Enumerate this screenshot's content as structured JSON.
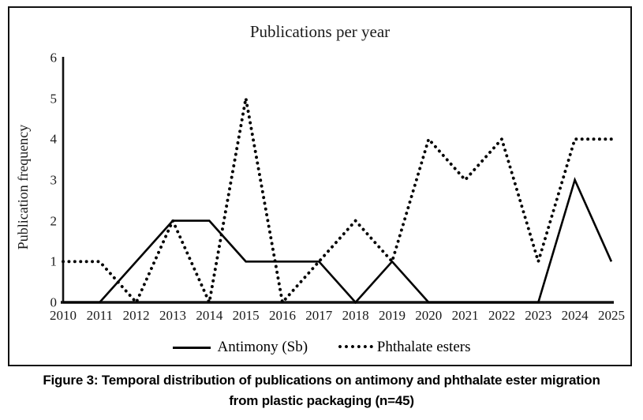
{
  "chart": {
    "title": "Publications per year",
    "y_axis_title": "Publication frequency",
    "dotted_swatch_glyph": "••••••",
    "colors": {
      "line_color": "#000000",
      "axis_color": "#111111",
      "background": "#ffffff"
    }
  },
  "chart_data": {
    "type": "line",
    "title": "Publications per year",
    "xlabel": "",
    "ylabel": "Publication frequency",
    "categories": [
      "2010",
      "2011",
      "2012",
      "2013",
      "2014",
      "2015",
      "2016",
      "2017",
      "2018",
      "2019",
      "2020",
      "2021",
      "2022",
      "2023",
      "2024",
      "2025"
    ],
    "series": [
      {
        "name": "Antimony (Sb)",
        "style": "solid",
        "color": "#000000",
        "values": [
          0,
          0,
          1,
          2,
          2,
          1,
          1,
          1,
          0,
          1,
          0,
          0,
          0,
          0,
          3,
          1
        ]
      },
      {
        "name": "Phthalate esters",
        "style": "dotted",
        "color": "#000000",
        "values": [
          1,
          1,
          0,
          2,
          0,
          5,
          0,
          1,
          2,
          1,
          4,
          3,
          4,
          1,
          4,
          4
        ]
      }
    ],
    "ylim": [
      0,
      6
    ],
    "yticks": [
      0,
      1,
      2,
      3,
      4,
      5,
      6
    ],
    "grid": false,
    "legend_position": "bottom"
  },
  "caption": {
    "line1": "Figure 3: Temporal distribution of publications on antimony and phthalate ester migration",
    "line2": "from plastic packaging (n=45)"
  }
}
